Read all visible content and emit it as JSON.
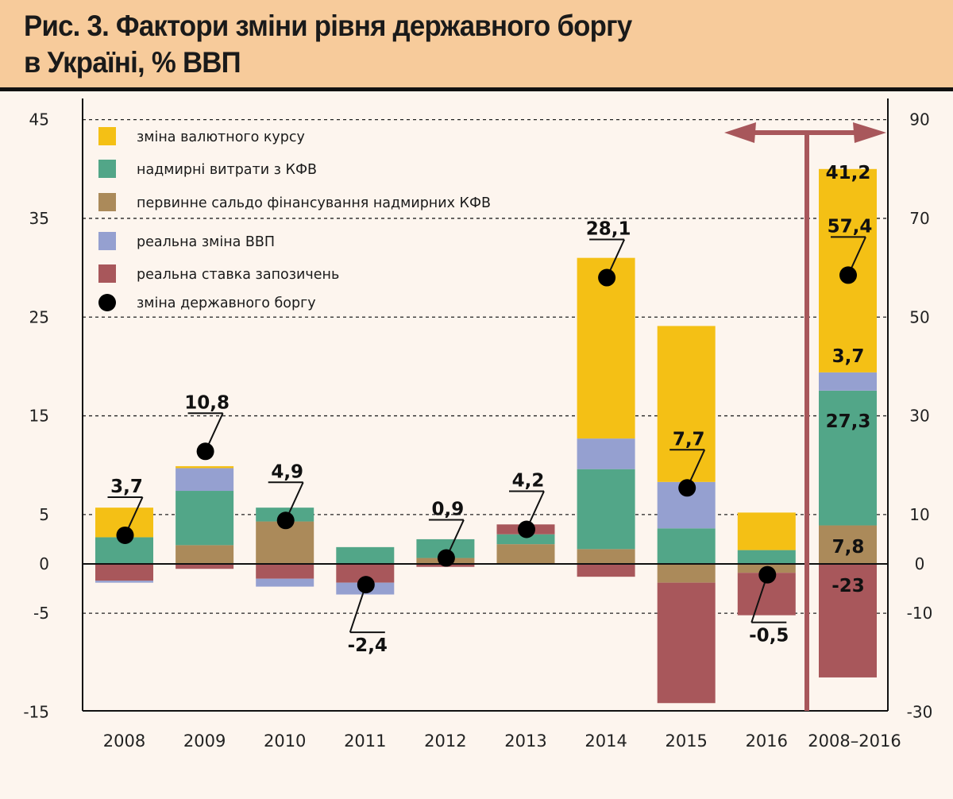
{
  "header": {
    "title_line1": "Рис. 3. Фактори зміни рівня державного боргу",
    "title_line2": "в Україні, % ВВП"
  },
  "colors": {
    "background": "#FDF5EE",
    "header_bg": "#F7CB9B",
    "exchange_rate": "#F4C015",
    "excess_spending": "#52A688",
    "primary_balance": "#AB8A5A",
    "real_gdp": "#95A0D0",
    "real_rate": "#A8575B",
    "debt_change": "#000000",
    "arrow": "#A8575B"
  },
  "chart_data": {
    "type": "bar",
    "stacked": true,
    "title": "Рис. 3. Фактори зміни рівня державного боргу в Україні, % ВВП",
    "xlabel": "",
    "ylabel": "",
    "categories": [
      "2008",
      "2009",
      "2010",
      "2011",
      "2012",
      "2013",
      "2014",
      "2015",
      "2016",
      "2008–2016"
    ],
    "left_axis": {
      "ylim": [
        -15,
        45
      ],
      "ticks": [
        45,
        35,
        25,
        15,
        5,
        0,
        -5,
        -15
      ],
      "applies_to": "2008–2016 annual bars"
    },
    "right_axis": {
      "ylim": [
        -30,
        90
      ],
      "ticks": [
        90,
        70,
        50,
        30,
        10,
        0,
        -10,
        -30
      ],
      "applies_to": "2008–2016 cumulative bar"
    },
    "grid": "dotted horizontal at ticks",
    "legend_position": "top-left",
    "series": [
      {
        "key": "exchange_rate",
        "name": "зміна валютного курсу",
        "values": [
          3.0,
          0.2,
          0,
          0,
          0,
          0,
          18.3,
          15.8,
          3.8,
          41.2
        ]
      },
      {
        "key": "excess_spending",
        "name": "надмирні витрати з КФВ",
        "values": [
          2.7,
          5.5,
          1.4,
          1.7,
          1.9,
          1.0,
          8.1,
          3.6,
          1.4,
          27.3
        ]
      },
      {
        "key": "primary_balance",
        "name": "первинне сальдо  фінансування надмирних КФВ",
        "values": [
          0,
          1.9,
          4.3,
          0,
          0.6,
          2.0,
          1.5,
          -1.9,
          -0.9,
          7.8
        ]
      },
      {
        "key": "real_gdp",
        "name": "реальна зміна ВВП",
        "values": [
          -0.2,
          2.3,
          -0.8,
          -1.2,
          0,
          0,
          3.1,
          4.7,
          0,
          3.7
        ]
      },
      {
        "key": "real_rate",
        "name": "реальна ставка запозичень",
        "values": [
          -1.7,
          -0.5,
          -1.5,
          -1.9,
          -0.3,
          1.0,
          -1.3,
          -12.2,
          -4.3,
          -23
        ]
      }
    ],
    "segment_order_positive": [
      "primary_balance",
      "excess_spending",
      "real_rate",
      "real_gdp",
      "exchange_rate"
    ],
    "segment_order_negative": [
      "primary_balance",
      "real_rate",
      "real_gdp"
    ],
    "cumulative_segment_labels": {
      "exchange_rate": "41,2",
      "real_gdp": "3,7",
      "excess_spending": "27,3",
      "primary_balance": "7,8",
      "real_rate": "-23"
    },
    "debt_change": {
      "name": "зміна державного боргу",
      "labels": [
        "3,7",
        "10,8",
        "4,9",
        "-2,4",
        "0,9",
        "4,2",
        "28,1",
        "7,7",
        "-0,5",
        "57,4"
      ],
      "values": [
        3.7,
        10.8,
        4.9,
        -2.4,
        0.9,
        4.2,
        28.1,
        7.7,
        -0.5,
        57.4
      ],
      "plotted_at": [
        2.9,
        11.4,
        4.4,
        -2.1,
        0.6,
        3.5,
        29.0,
        7.7,
        -1.1,
        58.5
      ]
    },
    "annotation": "double-headed arrow marking the cumulative 2008–2016 column (right axis)"
  }
}
